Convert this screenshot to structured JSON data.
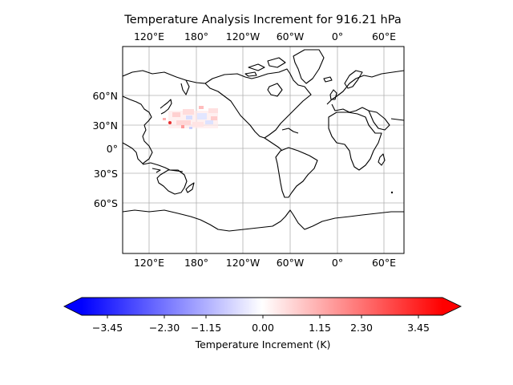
{
  "title": "Temperature Analysis Increment for  916.21 hPa",
  "map": {
    "lon_ticks_top": [
      "120°E",
      "180°",
      "120°W",
      "60°W",
      "0°",
      "60°E"
    ],
    "lon_ticks_bottom": [
      "120°E",
      "180°",
      "120°W",
      "60°W",
      "0°",
      "60°E"
    ],
    "lat_ticks": [
      "60°N",
      "30°N",
      "0°",
      "30°S",
      "60°S"
    ],
    "gridlines": true,
    "coastlines": true,
    "increment_region": "northwest Pacific (approx. 25°N–45°N, 150°E–165°W)"
  },
  "colorbar": {
    "label": "Temperature Increment (K)",
    "ticks": [
      "−3.45",
      "−2.30",
      "−1.15",
      "0.00",
      "1.15",
      "2.30",
      "3.45"
    ],
    "colors": [
      "#0000ff",
      "#ffffff",
      "#ff0000"
    ],
    "extend": "both"
  }
}
